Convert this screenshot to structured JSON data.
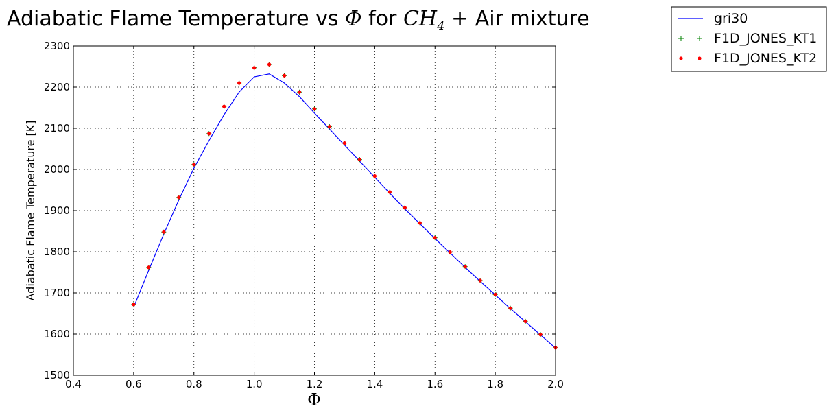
{
  "chart_data": {
    "type": "line",
    "title": {
      "prefix": "Adiabatic Flame Temperature vs ",
      "phi": "Φ",
      "middle": " for ",
      "species_main": "CH",
      "species_sub": "4",
      "suffix": " + Air mixture"
    },
    "xlabel": "Φ",
    "ylabel": "Adiabatic Flame Temperature [K]",
    "xlim": [
      0.4,
      2.0
    ],
    "ylim": [
      1500,
      2300
    ],
    "xticks": [
      0.4,
      0.6,
      0.8,
      1.0,
      1.2,
      1.4,
      1.6,
      1.8,
      2.0
    ],
    "xtick_labels": [
      "0.4",
      "0.6",
      "0.8",
      "1.0",
      "1.2",
      "1.4",
      "1.6",
      "1.8",
      "2.0"
    ],
    "yticks": [
      1500,
      1600,
      1700,
      1800,
      1900,
      2000,
      2100,
      2200,
      2300
    ],
    "ytick_labels": [
      "1500",
      "1600",
      "1700",
      "1800",
      "1900",
      "2000",
      "2100",
      "2200",
      "2300"
    ],
    "grid": true,
    "legend_position": "outside-top-right",
    "x": [
      0.6,
      0.65,
      0.7,
      0.75,
      0.8,
      0.85,
      0.9,
      0.95,
      1.0,
      1.05,
      1.1,
      1.15,
      1.2,
      1.25,
      1.3,
      1.35,
      1.4,
      1.45,
      1.5,
      1.55,
      1.6,
      1.65,
      1.7,
      1.75,
      1.8,
      1.85,
      1.9,
      1.95,
      2.0
    ],
    "series": [
      {
        "name": "gri30",
        "style": "line",
        "color": "#0000ff",
        "values": [
          1665,
          1755,
          1843,
          1926,
          2003,
          2070,
          2133,
          2188,
          2225,
          2232,
          2210,
          2177,
          2137,
          2098,
          2059,
          2020,
          1981,
          1942,
          1904,
          1868,
          1832,
          1797,
          1762,
          1728,
          1695,
          1662,
          1630,
          1598,
          1566
        ]
      },
      {
        "name": "F1D_JONES_KT1",
        "style": "plus",
        "color": "#008000",
        "values": [
          1672,
          1762,
          1848,
          1932,
          2012,
          2087,
          2153,
          2210,
          2247,
          2255,
          2228,
          2188,
          2147,
          2104,
          2064,
          2024,
          1984,
          1945,
          1907,
          1870,
          1834,
          1799,
          1764,
          1730,
          1696,
          1663,
          1631,
          1599,
          1567
        ]
      },
      {
        "name": "F1D_JONES_KT2",
        "style": "dot",
        "color": "#ff0000",
        "values": [
          1672,
          1762,
          1848,
          1932,
          2012,
          2087,
          2153,
          2210,
          2247,
          2255,
          2228,
          2188,
          2147,
          2104,
          2064,
          2024,
          1984,
          1945,
          1907,
          1870,
          1834,
          1799,
          1764,
          1730,
          1696,
          1663,
          1631,
          1599,
          1567
        ]
      }
    ]
  }
}
